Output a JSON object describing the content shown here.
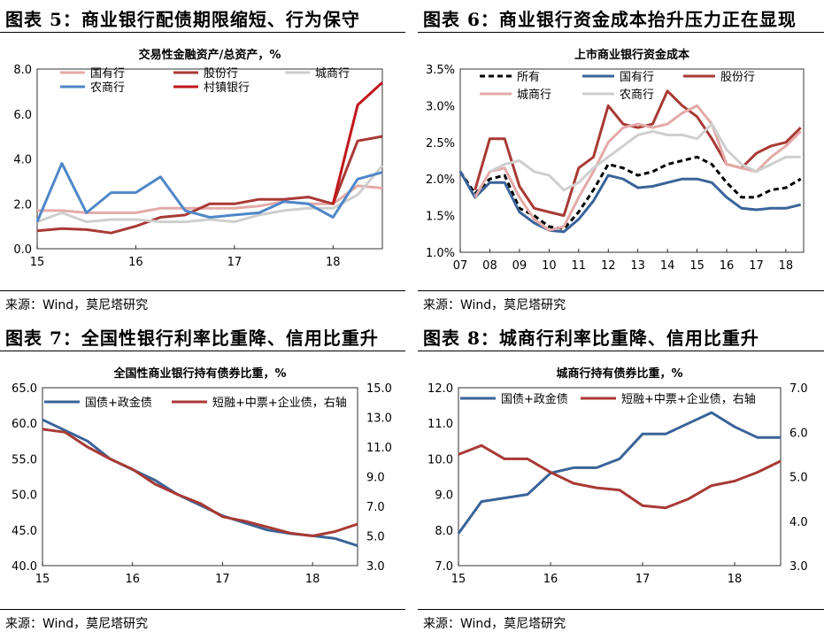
{
  "panels": [
    {
      "figure_title": "图表 5：商业银行配债期限缩短、行为保守",
      "source": "来源：Wind，莫尼塔研究"
    },
    {
      "figure_title": "图表 6：商业银行资金成本抬升压力正在显现",
      "source": "来源：Wind，莫尼塔研究"
    },
    {
      "figure_title": "图表 7：全国性银行利率比重降、信用比重升",
      "source": "来源：Wind，莫尼塔研究"
    },
    {
      "figure_title": "图表 8：城商行利率比重降、信用比重升",
      "source": "来源：Wind，莫尼塔研究"
    }
  ],
  "chart_data": [
    {
      "type": "line",
      "title": "交易性金融资产/总资产，%",
      "x": [
        15,
        15.25,
        15.5,
        15.75,
        16,
        16.25,
        16.5,
        16.75,
        17,
        17.25,
        17.5,
        17.75,
        18,
        18.25,
        18.5
      ],
      "xticks": [
        "15",
        "16",
        "17",
        "18"
      ],
      "ylim": [
        0,
        8
      ],
      "yticks": [
        "0.0",
        "2.0",
        "4.0",
        "6.0",
        "8.0"
      ],
      "series": [
        {
          "name": "国有行",
          "color": "#e3aaa8",
          "values": [
            1.7,
            1.7,
            1.6,
            1.6,
            1.6,
            1.8,
            1.8,
            1.8,
            1.8,
            1.9,
            2.1,
            2.0,
            2.0,
            2.8,
            2.7
          ]
        },
        {
          "name": "股份行",
          "color": "#a83a35",
          "values": [
            0.8,
            0.9,
            0.85,
            0.7,
            1.0,
            1.4,
            1.5,
            2.0,
            2.0,
            2.2,
            2.2,
            2.3,
            2.0,
            4.8,
            5.0
          ]
        },
        {
          "name": "城商行",
          "color": "#cfcfcf",
          "values": [
            1.2,
            1.6,
            1.2,
            1.3,
            1.3,
            1.2,
            1.2,
            1.3,
            1.2,
            1.5,
            1.7,
            1.8,
            1.8,
            2.4,
            3.7
          ]
        },
        {
          "name": "农商行",
          "color": "#4f87c8",
          "values": [
            1.2,
            3.8,
            1.6,
            2.5,
            2.5,
            3.2,
            1.7,
            1.4,
            1.5,
            1.6,
            2.1,
            2.0,
            1.4,
            3.1,
            3.4
          ]
        },
        {
          "name": "村镇银行",
          "color": "#c0161b",
          "values": [
            null,
            null,
            null,
            null,
            null,
            null,
            null,
            null,
            null,
            null,
            null,
            null,
            2.0,
            6.4,
            7.4
          ]
        }
      ]
    },
    {
      "type": "line",
      "title": "上市商业银行资金成本",
      "x": [
        7,
        7.5,
        8,
        8.5,
        9,
        9.5,
        10,
        10.5,
        11,
        11.5,
        12,
        12.5,
        13,
        13.5,
        14,
        14.5,
        15,
        15.5,
        16,
        16.5,
        17,
        17.5,
        18,
        18.5
      ],
      "xticks": [
        "07",
        "08",
        "09",
        "10",
        "11",
        "12",
        "13",
        "14",
        "15",
        "16",
        "17",
        "18"
      ],
      "ylim": [
        1.0,
        3.5
      ],
      "yticks": [
        "1.0%",
        "1.5%",
        "2.0%",
        "2.5%",
        "3.0%",
        "3.5%"
      ],
      "series": [
        {
          "name": "所有",
          "color": "#000000",
          "dash": true,
          "values": [
            2.1,
            1.8,
            2.0,
            2.05,
            1.6,
            1.5,
            1.35,
            1.32,
            1.55,
            1.85,
            2.2,
            2.15,
            2.05,
            2.1,
            2.2,
            2.25,
            2.3,
            2.2,
            1.95,
            1.75,
            1.75,
            1.85,
            1.88,
            2.0
          ]
        },
        {
          "name": "国有行",
          "color": "#3a6399",
          "values": [
            2.1,
            1.75,
            1.95,
            1.95,
            1.55,
            1.4,
            1.3,
            1.28,
            1.45,
            1.7,
            2.05,
            2.0,
            1.88,
            1.9,
            1.95,
            2.0,
            2.0,
            1.95,
            1.75,
            1.6,
            1.58,
            1.6,
            1.6,
            1.65
          ]
        },
        {
          "name": "股份行",
          "color": "#a83a35",
          "values": [
            null,
            1.85,
            2.55,
            2.55,
            1.9,
            1.6,
            1.55,
            1.5,
            2.15,
            2.3,
            3.0,
            2.75,
            2.7,
            2.75,
            3.2,
            3.0,
            2.85,
            2.55,
            2.2,
            2.15,
            2.35,
            2.45,
            2.5,
            2.7
          ]
        },
        {
          "name": "城商行",
          "color": "#e3aaa8",
          "values": [
            null,
            1.75,
            2.1,
            2.15,
            1.75,
            1.45,
            1.3,
            1.35,
            1.75,
            2.1,
            2.5,
            2.7,
            2.75,
            2.7,
            2.75,
            2.9,
            3.0,
            2.75,
            2.2,
            2.15,
            2.1,
            2.3,
            2.45,
            2.65
          ]
        },
        {
          "name": "农商行",
          "color": "#cfcfcf",
          "values": [
            null,
            null,
            2.1,
            2.2,
            2.25,
            2.1,
            2.05,
            1.85,
            1.95,
            2.15,
            2.3,
            2.45,
            2.6,
            2.65,
            2.6,
            2.6,
            2.55,
            2.75,
            2.4,
            2.2,
            2.1,
            2.2,
            2.3,
            2.3
          ]
        }
      ]
    },
    {
      "type": "line",
      "title": "全国性商业银行持有债券比重，%",
      "x": [
        15,
        15.25,
        15.5,
        15.75,
        16,
        16.25,
        16.5,
        16.75,
        17,
        17.25,
        17.5,
        17.75,
        18,
        18.25,
        18.5
      ],
      "xticks": [
        "15",
        "16",
        "17",
        "18"
      ],
      "ylim": [
        40,
        65
      ],
      "yticks": [
        "40.0",
        "45.0",
        "50.0",
        "55.0",
        "60.0",
        "65.0"
      ],
      "y2lim": [
        3,
        15
      ],
      "y2ticks": [
        "3.0",
        "5.0",
        "7.0",
        "9.0",
        "11.0",
        "13.0",
        "15.0"
      ],
      "series": [
        {
          "name": "国债+政金债",
          "axis": "left",
          "color": "#3a6399",
          "values": [
            60.5,
            59.0,
            57.5,
            55.0,
            53.5,
            52.0,
            50.0,
            48.5,
            47.0,
            46.0,
            45.0,
            44.5,
            44.2,
            43.8,
            42.8
          ]
        },
        {
          "name": "短融+中票+企业债，右轴",
          "axis": "right",
          "color": "#a83a35",
          "values": [
            12.2,
            12.0,
            11.0,
            10.2,
            9.5,
            8.5,
            7.8,
            7.2,
            6.3,
            6.0,
            5.6,
            5.2,
            5.0,
            5.3,
            5.8
          ]
        }
      ]
    },
    {
      "type": "line",
      "title": "城商行持有债券比重，%",
      "x": [
        15,
        15.25,
        15.5,
        15.75,
        16,
        16.25,
        16.5,
        16.75,
        17,
        17.25,
        17.5,
        17.75,
        18,
        18.25,
        18.5
      ],
      "xticks": [
        "15",
        "16",
        "17",
        "18"
      ],
      "ylim": [
        7,
        12
      ],
      "yticks": [
        "7.0",
        "8.0",
        "9.0",
        "10.0",
        "11.0",
        "12.0"
      ],
      "y2lim": [
        3,
        7
      ],
      "y2ticks": [
        "3.0",
        "4.0",
        "5.0",
        "6.0",
        "7.0"
      ],
      "series": [
        {
          "name": "国债+政金债",
          "axis": "left",
          "color": "#3a6399",
          "values": [
            7.9,
            8.8,
            8.9,
            9.0,
            9.6,
            9.75,
            9.75,
            10.0,
            10.7,
            10.7,
            11.0,
            11.3,
            10.9,
            10.6,
            10.6
          ]
        },
        {
          "name": "短融+中票+企业债，右轴",
          "axis": "right",
          "color": "#a83a35",
          "values": [
            5.5,
            5.7,
            5.4,
            5.4,
            5.1,
            4.85,
            4.75,
            4.7,
            4.35,
            4.3,
            4.5,
            4.8,
            4.9,
            5.1,
            5.35
          ]
        }
      ]
    }
  ]
}
